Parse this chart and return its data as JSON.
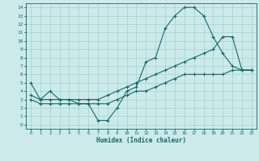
{
  "xlabel": "Humidex (Indice chaleur)",
  "bg_color": "#cceaea",
  "grid_color": "#99cccc",
  "line_color": "#1a6666",
  "xlim": [
    -0.5,
    23.5
  ],
  "ylim": [
    -0.5,
    14.5
  ],
  "xticks": [
    0,
    1,
    2,
    3,
    4,
    5,
    6,
    7,
    8,
    9,
    10,
    11,
    12,
    13,
    14,
    15,
    16,
    17,
    18,
    19,
    20,
    21,
    22,
    23
  ],
  "yticks": [
    0,
    1,
    2,
    3,
    4,
    5,
    6,
    7,
    8,
    9,
    10,
    11,
    12,
    13,
    14
  ],
  "line1_x": [
    0,
    1,
    2,
    3,
    4,
    5,
    6,
    7,
    8,
    9,
    10,
    11,
    12,
    13,
    14,
    15,
    16,
    17,
    18,
    19,
    20,
    21,
    22,
    23
  ],
  "line1_y": [
    5.0,
    3.0,
    4.0,
    3.0,
    3.0,
    2.5,
    2.5,
    0.5,
    0.5,
    2.0,
    4.0,
    4.5,
    7.5,
    8.0,
    11.5,
    13.0,
    14.0,
    14.0,
    13.0,
    10.5,
    8.5,
    7.0,
    6.5,
    6.5
  ],
  "line2_x": [
    0,
    1,
    2,
    3,
    4,
    5,
    6,
    7,
    8,
    9,
    10,
    11,
    12,
    13,
    14,
    15,
    16,
    17,
    18,
    19,
    20,
    21,
    22,
    23
  ],
  "line2_y": [
    3.0,
    2.5,
    2.5,
    2.5,
    2.5,
    2.5,
    2.5,
    2.5,
    2.5,
    3.0,
    3.5,
    4.0,
    4.0,
    4.5,
    5.0,
    5.5,
    6.0,
    6.0,
    6.0,
    6.0,
    6.0,
    6.5,
    6.5,
    6.5
  ],
  "line3_x": [
    0,
    1,
    2,
    3,
    4,
    5,
    6,
    7,
    8,
    9,
    10,
    11,
    12,
    13,
    14,
    15,
    16,
    17,
    18,
    19,
    20,
    21,
    22,
    23
  ],
  "line3_y": [
    3.5,
    3.0,
    3.0,
    3.0,
    3.0,
    3.0,
    3.0,
    3.0,
    3.5,
    4.0,
    4.5,
    5.0,
    5.5,
    6.0,
    6.5,
    7.0,
    7.5,
    8.0,
    8.5,
    9.0,
    10.5,
    10.5,
    6.5,
    6.5
  ]
}
